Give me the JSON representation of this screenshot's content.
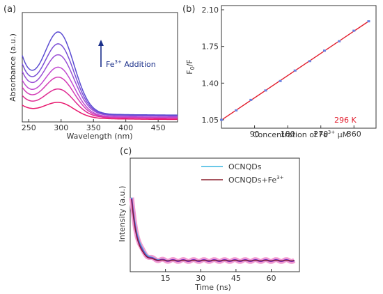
{
  "chart_data": [
    {
      "type": "line",
      "panel_label": "(a)",
      "xlabel": "Wavelength (nm)",
      "ylabel": "Absorbance (a.u.)",
      "xlim": [
        240,
        480
      ],
      "ylim": [
        0,
        1
      ],
      "xticks": [
        250,
        300,
        350,
        400,
        450
      ],
      "annotation": {
        "text": "Fe",
        "sup": "3+",
        "rest": " Addition"
      },
      "colors": [
        "#e8186e",
        "#df2a92",
        "#d33cb6",
        "#c14ad0",
        "#9b50d6",
        "#7a4fd6",
        "#5b4cd2"
      ],
      "series": [
        {
          "peak": 0.16,
          "base": 0.02
        },
        {
          "peak": 0.29,
          "base": 0.03
        },
        {
          "peak": 0.41,
          "base": 0.035
        },
        {
          "peak": 0.51,
          "base": 0.04
        },
        {
          "peak": 0.63,
          "base": 0.05
        },
        {
          "peak": 0.74,
          "base": 0.055
        },
        {
          "peak": 0.86,
          "base": 0.06
        }
      ]
    },
    {
      "type": "scatter",
      "panel_label": "(b)",
      "xlabel_main": "Concentration of Fe",
      "xlabel_sup": "3+",
      "xlabel_unit": " μM",
      "ylabel_main": "F",
      "ylabel_sub": "0",
      "ylabel_rest": "/F",
      "xlim": [
        0,
        420
      ],
      "ylim": [
        0.97,
        2.14
      ],
      "xticks": [
        90,
        180,
        270,
        360
      ],
      "yticks": [
        "1.05",
        "1.40",
        "1.75",
        "2.10"
      ],
      "ytick_values": [
        1.05,
        1.4,
        1.75,
        2.1
      ],
      "x": [
        0,
        40,
        80,
        120,
        160,
        200,
        240,
        280,
        320,
        360,
        400
      ],
      "y": [
        1.05,
        1.14,
        1.24,
        1.33,
        1.42,
        1.52,
        1.61,
        1.71,
        1.8,
        1.9,
        1.99
      ],
      "fit_color": "#e21b2b",
      "point_color": "#6a7fe0",
      "annotation": "296 K"
    },
    {
      "type": "line",
      "panel_label": "(c)",
      "xlabel": "Time (ns)",
      "ylabel": "Intensity (a.u.)",
      "xlim": [
        0,
        72
      ],
      "ylim": [
        0,
        1
      ],
      "xticks": [
        15,
        30,
        45,
        60
      ],
      "series": [
        {
          "name": "OCNQDs",
          "color": "#39b6e0",
          "tau": 2.7
        },
        {
          "name": "OCNQDs+Fe",
          "sup": "3+",
          "color": "#8a1d2a",
          "tau": 2.4
        }
      ],
      "overlay_colors": [
        "#f29ad2",
        "#7a2cb8"
      ]
    }
  ]
}
